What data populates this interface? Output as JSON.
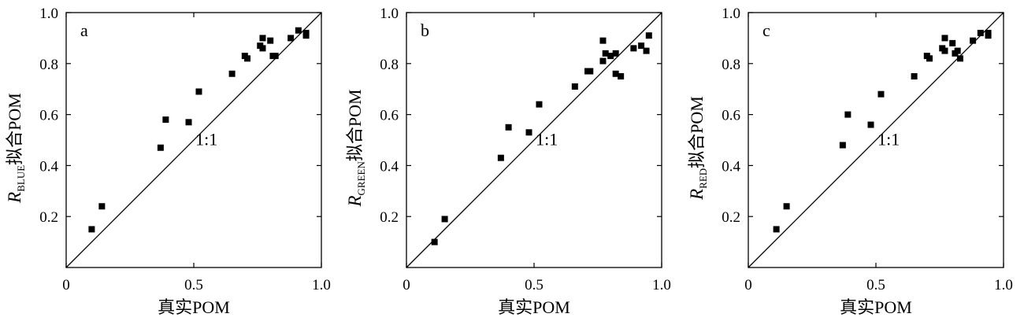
{
  "chart_data": [
    {
      "type": "scatter",
      "panel_label": "a",
      "ylabel_main": "R",
      "ylabel_sub": "BLUE",
      "ylabel_suffix": "拟合POM",
      "xlabel": "真实POM",
      "xlim": [
        0,
        1.0
      ],
      "ylim": [
        0,
        1.0
      ],
      "x_ticks": [
        "0",
        "0.5",
        "1.0"
      ],
      "y_ticks": [
        "0.2",
        "0.4",
        "0.6",
        "0.8",
        "1.0"
      ],
      "reference_line_label": "1:1",
      "points": [
        [
          0.1,
          0.15
        ],
        [
          0.14,
          0.24
        ],
        [
          0.37,
          0.47
        ],
        [
          0.39,
          0.58
        ],
        [
          0.48,
          0.57
        ],
        [
          0.52,
          0.69
        ],
        [
          0.65,
          0.76
        ],
        [
          0.7,
          0.83
        ],
        [
          0.71,
          0.82
        ],
        [
          0.76,
          0.87
        ],
        [
          0.77,
          0.9
        ],
        [
          0.77,
          0.86
        ],
        [
          0.8,
          0.89
        ],
        [
          0.81,
          0.83
        ],
        [
          0.82,
          0.83
        ],
        [
          0.88,
          0.9
        ],
        [
          0.91,
          0.93
        ],
        [
          0.94,
          0.91
        ],
        [
          0.94,
          0.92
        ]
      ]
    },
    {
      "type": "scatter",
      "panel_label": "b",
      "ylabel_main": "R",
      "ylabel_sub": "GREEN",
      "ylabel_suffix": "拟合POM",
      "xlabel": "真实POM",
      "xlim": [
        0,
        1.0
      ],
      "ylim": [
        0,
        1.0
      ],
      "x_ticks": [
        "0",
        "0.5",
        "1.0"
      ],
      "y_ticks": [
        "0.2",
        "0.4",
        "0.6",
        "0.8",
        "1.0"
      ],
      "reference_line_label": "1:1",
      "points": [
        [
          0.11,
          0.1
        ],
        [
          0.15,
          0.19
        ],
        [
          0.37,
          0.43
        ],
        [
          0.4,
          0.55
        ],
        [
          0.48,
          0.53
        ],
        [
          0.52,
          0.64
        ],
        [
          0.66,
          0.71
        ],
        [
          0.71,
          0.77
        ],
        [
          0.72,
          0.77
        ],
        [
          0.77,
          0.89
        ],
        [
          0.77,
          0.81
        ],
        [
          0.78,
          0.84
        ],
        [
          0.8,
          0.83
        ],
        [
          0.82,
          0.84
        ],
        [
          0.82,
          0.76
        ],
        [
          0.84,
          0.75
        ],
        [
          0.89,
          0.86
        ],
        [
          0.92,
          0.87
        ],
        [
          0.94,
          0.85
        ],
        [
          0.95,
          0.91
        ]
      ]
    },
    {
      "type": "scatter",
      "panel_label": "c",
      "ylabel_main": "R",
      "ylabel_sub": "RED",
      "ylabel_suffix": "拟合POM",
      "xlabel": "真实POM",
      "xlim": [
        0,
        1.0
      ],
      "ylim": [
        0,
        1.0
      ],
      "x_ticks": [
        "0",
        "0.5",
        "1.0"
      ],
      "y_ticks": [
        "0.2",
        "0.4",
        "0.6",
        "0.8",
        "1.0"
      ],
      "reference_line_label": "1:1",
      "points": [
        [
          0.11,
          0.15
        ],
        [
          0.15,
          0.24
        ],
        [
          0.37,
          0.48
        ],
        [
          0.39,
          0.6
        ],
        [
          0.48,
          0.56
        ],
        [
          0.52,
          0.68
        ],
        [
          0.65,
          0.75
        ],
        [
          0.7,
          0.83
        ],
        [
          0.71,
          0.82
        ],
        [
          0.76,
          0.86
        ],
        [
          0.77,
          0.9
        ],
        [
          0.77,
          0.85
        ],
        [
          0.8,
          0.88
        ],
        [
          0.81,
          0.84
        ],
        [
          0.82,
          0.85
        ],
        [
          0.83,
          0.82
        ],
        [
          0.88,
          0.89
        ],
        [
          0.91,
          0.92
        ],
        [
          0.94,
          0.91
        ],
        [
          0.94,
          0.92
        ]
      ]
    }
  ]
}
